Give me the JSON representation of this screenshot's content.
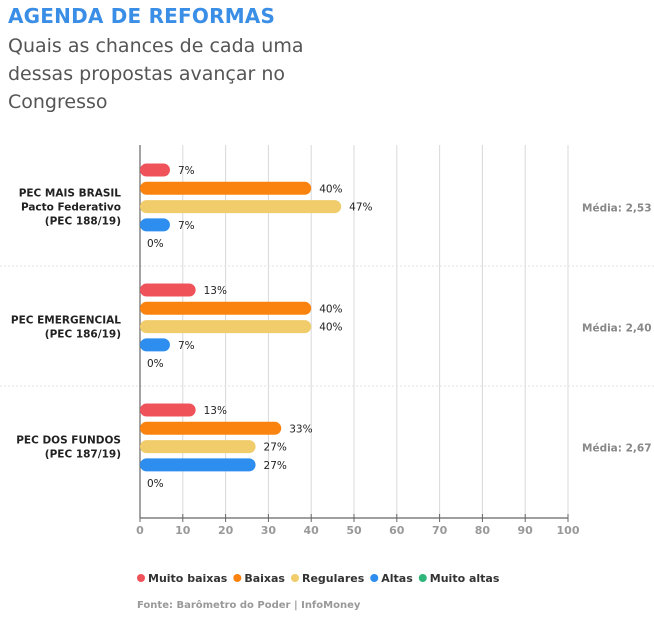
{
  "chart_data": {
    "type": "bar",
    "orientation": "horizontal",
    "title": "AGENDA DE REFORMAS",
    "subtitle": "Quais as chances de cada uma dessas propostas avançar no Congresso",
    "categories": [
      {
        "label": [
          "PEC MAIS BRASIL",
          "Pacto Federativo",
          "(PEC 188/19)"
        ],
        "media": "Média: 2,53"
      },
      {
        "label": [
          "PEC EMERGENCIAL",
          "(PEC 186/19)"
        ],
        "media": "Média: 2,40"
      },
      {
        "label": [
          "PEC DOS FUNDOS",
          "(PEC 187/19)"
        ],
        "media": "Média: 2,67"
      }
    ],
    "series": [
      {
        "name": "Muito baixas",
        "color": "#f0525a",
        "values": [
          7,
          13,
          13
        ]
      },
      {
        "name": "Baixas",
        "color": "#fa8310",
        "values": [
          40,
          40,
          33
        ]
      },
      {
        "name": "Regulares",
        "color": "#f0cc6a",
        "values": [
          47,
          40,
          27
        ]
      },
      {
        "name": "Altas",
        "color": "#2d8ef0",
        "values": [
          7,
          7,
          27
        ]
      },
      {
        "name": "Muito altas",
        "color": "#2db57a",
        "values": [
          0,
          0,
          0
        ]
      }
    ],
    "xlim": [
      0,
      100
    ],
    "xticks": [
      0,
      10,
      20,
      30,
      40,
      50,
      60,
      70,
      80,
      90,
      100
    ],
    "value_suffix": "%",
    "grid": true,
    "legend_position": "bottom"
  },
  "source": "Fonte: Barômetro do Poder | InfoMoney"
}
